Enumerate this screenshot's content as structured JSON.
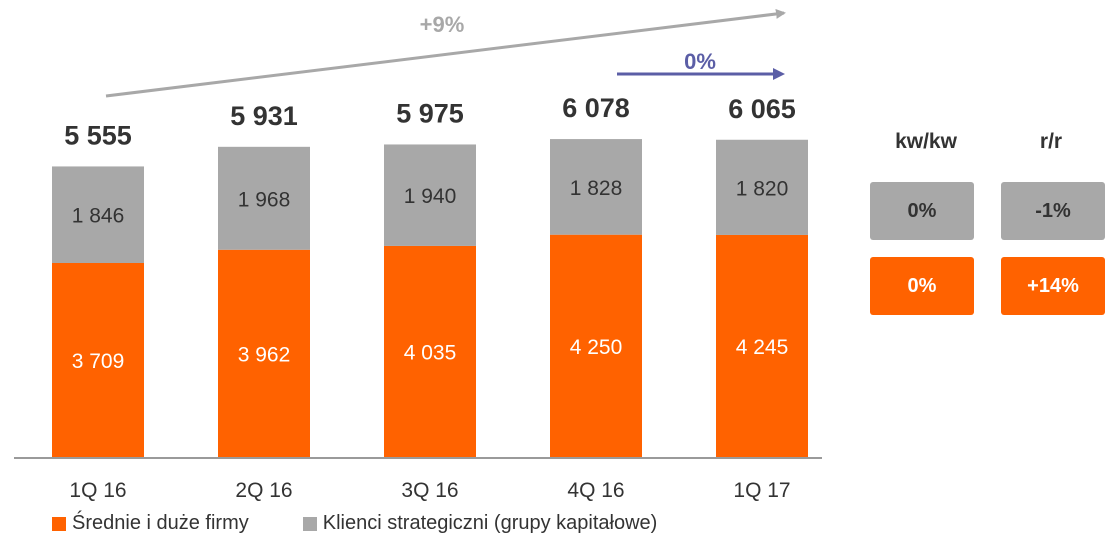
{
  "chart_data": {
    "type": "bar",
    "stacked": true,
    "categories": [
      "1Q 16",
      "2Q 16",
      "3Q 16",
      "4Q 16",
      "1Q 17"
    ],
    "series": [
      {
        "name": "Średnie i duże firmy",
        "color": "#ff6200",
        "values": [
          3709,
          3962,
          4035,
          4250,
          4245
        ],
        "labels": [
          "3 709",
          "3 962",
          "4 035",
          "4 250",
          "4 245"
        ]
      },
      {
        "name": "Klienci strategiczni (grupy kapitałowe)",
        "color": "#a8a8a8",
        "values": [
          1846,
          1968,
          1940,
          1828,
          1820
        ],
        "labels": [
          "1 846",
          "1 968",
          "1 940",
          "1 828",
          "1 820"
        ]
      }
    ],
    "totals": [
      "5 555",
      "5 931",
      "5 975",
      "6 078",
      "6 065"
    ],
    "ylim": [
      0,
      6500
    ],
    "grid": false,
    "legend": "bottom",
    "annotations": [
      {
        "text": "+9%",
        "color": "#a8a8a8",
        "from": "1Q 16",
        "to": "1Q 17"
      },
      {
        "text": "0%",
        "color": "#5b5ea6",
        "from": "4Q 16",
        "to": "1Q 17"
      }
    ]
  },
  "side_table": {
    "headers": [
      "kw/kw",
      "r/r"
    ],
    "rows": [
      {
        "color": "#a8a8a8",
        "values": [
          "0%",
          "-1%"
        ]
      },
      {
        "color": "#ff6200",
        "values": [
          "0%",
          "+14%"
        ]
      }
    ]
  }
}
